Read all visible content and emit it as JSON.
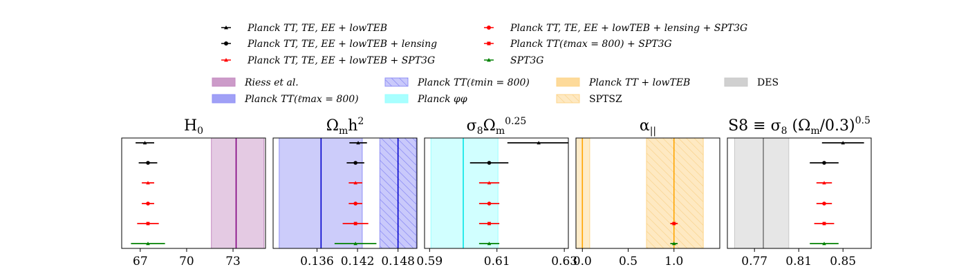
{
  "legend_series": [
    {
      "label": "Planck TT, TE, EE + lowTEB",
      "color": "#000000",
      "marker": "triangle"
    },
    {
      "label": "Planck TT, TE, EE + lowTEB + lensing",
      "color": "#000000",
      "marker": "circle"
    },
    {
      "label": "Planck TT, TE, EE + lowTEB + SPT3G",
      "color": "#ff0000",
      "marker": "triangle"
    },
    {
      "label": "Planck TT, TE, EE + lowTEB + lensing + SPT3G",
      "color": "#ff0000",
      "marker": "circle"
    },
    {
      "label": "Planck TT(ℓmax = 800) + SPT3G",
      "color": "#ff0000",
      "marker": "square"
    },
    {
      "label": "SPT3G",
      "color": "#008000",
      "marker": "triangle"
    }
  ],
  "legend_bands": [
    {
      "label": "Riess et al.",
      "color": "#c389c0",
      "hatch": false
    },
    {
      "label": "Planck TT(ℓmax = 800)",
      "color": "#8f8ff5",
      "hatch": false
    },
    {
      "label": "Planck TT(ℓmin = 800)",
      "color": "#8f8ff5",
      "hatch": true
    },
    {
      "label": "Planck φφ",
      "color": "#99ffff",
      "hatch": false
    },
    {
      "label": "Planck TT + lowTEB",
      "color": "#fdd488",
      "hatch": false
    },
    {
      "label": "SPTSZ",
      "color": "#fdd488",
      "hatch": true
    },
    {
      "label": "DES",
      "color": "#c8c8c8",
      "hatch": false
    }
  ],
  "chart_data": [
    {
      "type": "scatter",
      "title": "H0",
      "xlim": [
        65.8,
        75.1
      ],
      "xticks": [
        67,
        70,
        73
      ],
      "tick_labels": [
        "67",
        "70",
        "73"
      ],
      "points": [
        {
          "x": 67.3,
          "xerr": [
            0.6,
            0.6
          ]
        },
        {
          "x": 67.5,
          "xerr": [
            0.6,
            0.6
          ]
        },
        {
          "x": 67.5,
          "xerr": [
            0.4,
            0.4
          ]
        },
        {
          "x": 67.5,
          "xerr": [
            0.4,
            0.4
          ]
        },
        {
          "x": 67.5,
          "xerr": [
            0.7,
            0.7
          ]
        },
        {
          "x": 67.5,
          "xerr": [
            1.1,
            1.1
          ]
        }
      ],
      "bands": [
        {
          "legend": 0,
          "range": [
            71.6,
            75.0
          ],
          "center": 73.2,
          "line_color": "#800080"
        }
      ]
    },
    {
      "type": "scatter",
      "title": "Ωmh2",
      "xlim": [
        0.1295,
        0.1508
      ],
      "xticks": [
        0.136,
        0.142,
        0.148
      ],
      "tick_labels": [
        "0.136",
        "0.142",
        "0.148"
      ],
      "points": [
        {
          "x": 0.1421,
          "xerr": [
            0.0013,
            0.0013
          ]
        },
        {
          "x": 0.1417,
          "xerr": [
            0.0013,
            0.0013
          ]
        },
        {
          "x": 0.1417,
          "xerr": [
            0.001,
            0.001
          ]
        },
        {
          "x": 0.1417,
          "xerr": [
            0.001,
            0.001
          ]
        },
        {
          "x": 0.1417,
          "xerr": [
            0.0019,
            0.0019
          ]
        },
        {
          "x": 0.1417,
          "xerr": [
            0.0031,
            0.0031
          ]
        }
      ],
      "bands": [
        {
          "legend": 1,
          "range": [
            0.1304,
            0.1427
          ],
          "center": 0.1366,
          "line_color": "#0000cc"
        },
        {
          "legend": 2,
          "range": [
            0.1453,
            0.1507
          ],
          "center": 0.148,
          "line_color": "#0000cc"
        }
      ]
    },
    {
      "type": "scatter",
      "title": "σ8Ωm0.25",
      "xlim": [
        0.5885,
        0.6312
      ],
      "xticks": [
        0.59,
        0.61,
        0.63
      ],
      "tick_labels": [
        "0.59",
        "0.61",
        "0.63"
      ],
      "points": [
        {
          "x": 0.6224,
          "xerr": [
            0.0093,
            0.0093
          ]
        },
        {
          "x": 0.6077,
          "xerr": [
            0.0057,
            0.0057
          ]
        },
        {
          "x": 0.6077,
          "xerr": [
            0.003,
            0.003
          ]
        },
        {
          "x": 0.6077,
          "xerr": [
            0.003,
            0.003
          ]
        },
        {
          "x": 0.6077,
          "xerr": [
            0.003,
            0.003
          ]
        },
        {
          "x": 0.6077,
          "xerr": [
            0.003,
            0.003
          ]
        }
      ],
      "bands": [
        {
          "legend": 3,
          "range": [
            0.5904,
            0.6103
          ],
          "center": 0.6,
          "line_color": "#00e5e5"
        }
      ]
    },
    {
      "type": "scatter",
      "title": "α||",
      "xlim": [
        -0.07,
        1.5
      ],
      "xticks": [
        0.0,
        0.5,
        1.0
      ],
      "tick_labels": [
        "0.0",
        "0.5",
        "1.0"
      ],
      "points": [
        {
          "x": 1.0,
          "xerr": [
            0.04,
            0.04
          ]
        },
        {
          "x": 1.0,
          "xerr": [
            0.04,
            0.04
          ]
        }
      ],
      "point_rows": [
        4,
        5
      ],
      "bands": [
        {
          "legend": 4,
          "range": [
            -0.08,
            0.08
          ],
          "center": 0.0,
          "line_color": "#ffa500"
        },
        {
          "legend": 5,
          "range": [
            0.7,
            1.32
          ],
          "center": 1.0,
          "line_color": "#ffa500"
        }
      ]
    },
    {
      "type": "scatter",
      "title": "S8 ≡ σ8 (Ωm/0.3)0.5",
      "xlim": [
        0.7455,
        0.8755
      ],
      "xticks": [
        0.77,
        0.81,
        0.85
      ],
      "tick_labels": [
        "0.77",
        "0.81",
        "0.85"
      ],
      "points": [
        {
          "x": 0.85,
          "xerr": [
            0.019,
            0.019
          ]
        },
        {
          "x": 0.833,
          "xerr": [
            0.013,
            0.013
          ]
        },
        {
          "x": 0.833,
          "xerr": [
            0.007,
            0.007
          ]
        },
        {
          "x": 0.833,
          "xerr": [
            0.007,
            0.007
          ]
        },
        {
          "x": 0.833,
          "xerr": [
            0.009,
            0.009
          ]
        },
        {
          "x": 0.833,
          "xerr": [
            0.013,
            0.013
          ]
        }
      ],
      "bands": [
        {
          "legend": 6,
          "range": [
            0.752,
            0.801
          ],
          "center": 0.778,
          "line_color": "#7a7a7a"
        }
      ]
    }
  ]
}
